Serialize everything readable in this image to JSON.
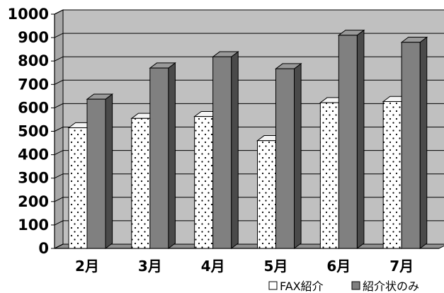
{
  "chart_data": {
    "type": "bar",
    "categories": [
      "2月",
      "3月",
      "4月",
      "5月",
      "6月",
      "7月"
    ],
    "series": [
      {
        "name": "FAX紹介",
        "values": [
          515,
          555,
          563,
          460,
          622,
          627
        ],
        "pattern": "dots",
        "color": "#ffffff"
      },
      {
        "name": "紹介状のみ",
        "values": [
          637,
          770,
          818,
          767,
          910,
          880
        ],
        "color": "#808080"
      }
    ],
    "ylim": [
      0,
      1000
    ],
    "yticks": [
      "0",
      "100",
      "200",
      "300",
      "400",
      "500",
      "600",
      "700",
      "800",
      "900",
      "1000"
    ],
    "grid": true,
    "legend_position": "bottom-right",
    "colors": {
      "wall": "#c0c0c0",
      "wall_side": "#a8a8a8",
      "floor": "#909090",
      "bar_dark_front": "#808080",
      "bar_dark_side": "#4a4a4a",
      "bar_dark_top": "#999999",
      "bar_light_side": "#e0e0e0",
      "bar_light_top": "#f4f4f4"
    }
  }
}
